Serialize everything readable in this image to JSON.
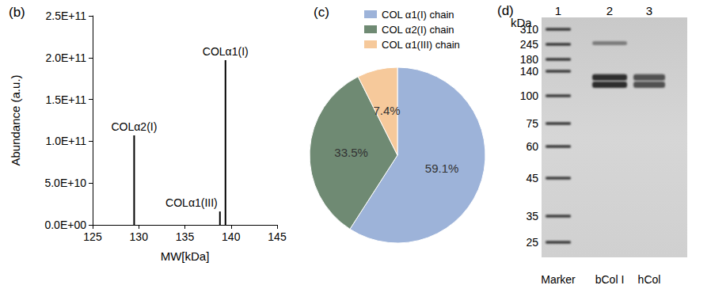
{
  "chart_data": [
    {
      "panel": "(b)",
      "type": "bar",
      "x": [
        129.5,
        138.8,
        139.4
      ],
      "values": [
        107000000000,
        16000000000,
        197000000000
      ],
      "annotations": [
        "COLα2(I)",
        "COLα1(III)",
        "COLα1(I)"
      ],
      "color": "#000000",
      "xlabel": "MW[kDa]",
      "ylabel": "Abundance (a.u.)",
      "xlim": [
        125,
        145
      ],
      "xticks": [
        125,
        130,
        135,
        140,
        145
      ],
      "ylim": [
        0,
        250000000000
      ],
      "yticks": [
        {
          "value": 0,
          "label": "0.0E+00"
        },
        {
          "value": 50000000000,
          "label": "5.0E+10"
        },
        {
          "value": 100000000000,
          "label": "1.0E+11"
        },
        {
          "value": 150000000000,
          "label": "1.5E+11"
        },
        {
          "value": 200000000000,
          "label": "2.0E+11"
        },
        {
          "value": 250000000000,
          "label": "2.5E+11"
        }
      ],
      "grid": false
    },
    {
      "panel": "(c)",
      "type": "pie",
      "categories": [
        "COL α1(I) chain",
        "COL α2(I) chain",
        "COL α1(III) chain"
      ],
      "values": [
        59.1,
        33.5,
        7.4
      ],
      "value_labels": [
        "59.1%",
        "33.5%",
        "7.4%"
      ],
      "colors": [
        "#9db3d9",
        "#6f8a73",
        "#f6c99b"
      ],
      "legend": "top",
      "data_labels": true
    }
  ],
  "gel": {
    "panel": "(d)",
    "unit": "kDa",
    "markers": [
      310,
      245,
      180,
      140,
      100,
      75,
      60,
      45,
      35,
      25
    ],
    "lanes": [
      {
        "number": "1",
        "name": "Marker"
      },
      {
        "number": "2",
        "name": "bCol I",
        "bands": [
          250,
          130,
          118
        ]
      },
      {
        "number": "3",
        "name": "hCol",
        "bands": [
          130,
          118
        ]
      }
    ]
  }
}
